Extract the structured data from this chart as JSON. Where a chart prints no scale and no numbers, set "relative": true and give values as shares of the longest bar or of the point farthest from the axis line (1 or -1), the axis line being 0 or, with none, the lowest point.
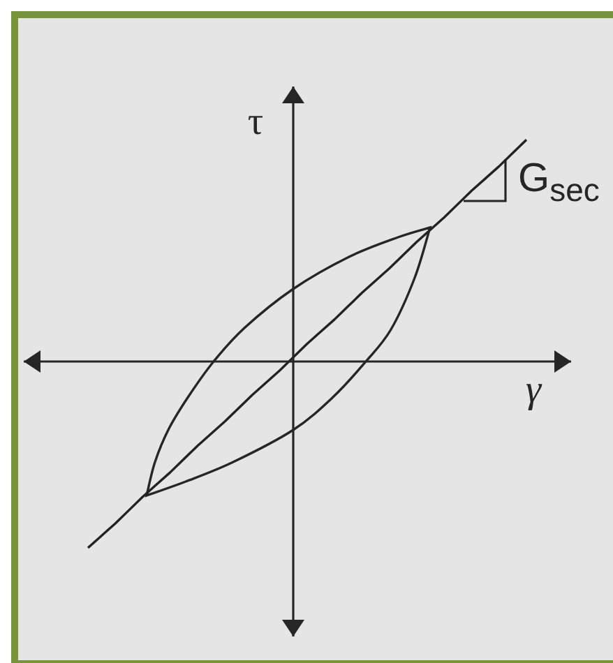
{
  "chart_data": {
    "type": "line",
    "relative": true,
    "xlabel": "γ",
    "ylabel": "τ",
    "annotations": [
      "G$_{sec}$"
    ],
    "marker": "none",
    "categories": [
      null,
      null,
      null,
      null,
      null,
      null,
      null,
      null,
      null,
      null,
      null,
      null,
      null,
      null,
      null,
      null,
      null,
      null,
      null,
      null,
      null,
      null,
      null,
      null,
      null,
      null,
      null,
      null,
      null,
      null,
      null,
      null,
      null
    ],
    "series": [
      {
        "color": "#222222",
        "values": [
          -0.84,
          -0.785,
          -0.73,
          -0.67,
          -0.61,
          -0.555,
          -0.5,
          -0.44,
          -0.38,
          -0.325,
          -0.27,
          -0.21,
          -0.15,
          -0.095,
          -0.04,
          0.02,
          0.08,
          0.135,
          0.19,
          0.25,
          0.31,
          0.365,
          0.42,
          0.48,
          0.54,
          0.595,
          0.65,
          0.71,
          0.77,
          0.825,
          0.88,
          0.94,
          1
        ]
      }
    ]
  }
}
